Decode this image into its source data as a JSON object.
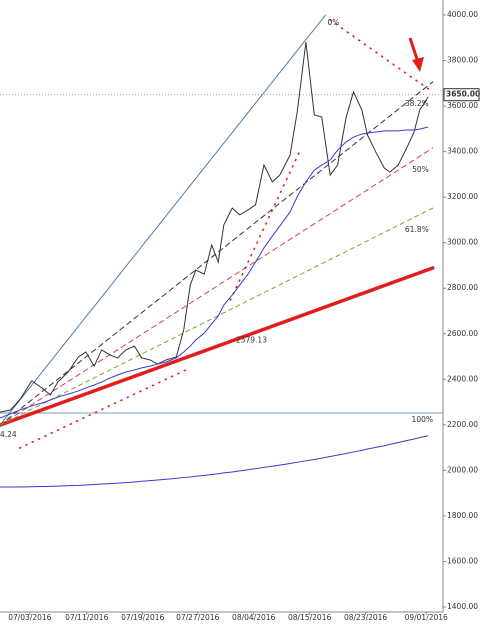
{
  "chart_data": {
    "type": "line",
    "x": [
      0,
      1.1,
      2.1,
      3.4,
      4.5,
      5.4,
      6.2,
      7.3,
      8.4,
      9.2,
      10.1,
      10.9,
      11.8,
      12.6,
      13.5,
      14.4,
      15.2,
      16.1,
      16.9,
      17.8,
      18.9,
      19.7,
      20.4,
      21,
      21.9,
      22.7,
      23.4,
      24,
      24.9,
      25.7,
      26.6,
      27.4,
      28.3,
      29.2,
      30,
      31.1,
      31.9,
      32.8,
      33.7,
      34.5,
      35.4,
      36.2,
      37.1,
      37.9,
      38.8,
      39.4,
      40.3,
      41.2,
      41.8,
      42.7,
      43.5,
      44.4,
      45,
      45.9
    ],
    "series": [
      {
        "color": "#333333",
        "width": 1,
        "values": [
          2256,
          2265,
          2309,
          2393,
          2362,
          2331,
          2388,
          2432,
          2498,
          2520,
          2458,
          2529,
          2507,
          2494,
          2529,
          2546,
          2494,
          2485,
          2467,
          2485,
          2498,
          2617,
          2814,
          2880,
          2862,
          2990,
          2915,
          3078,
          3152,
          3122,
          3144,
          3166,
          3341,
          3267,
          3297,
          3385,
          3583,
          3881,
          3561,
          3552,
          3297,
          3341,
          3548,
          3662,
          3583,
          3473,
          3398,
          3328,
          3310,
          3341,
          3407,
          3486,
          3583,
          3640
        ]
      },
      {
        "color": "#3a3ad0",
        "width": 1,
        "values": [
          2230,
          2248,
          2265,
          2283,
          2296,
          2309,
          2322,
          2335,
          2349,
          2362,
          2375,
          2388,
          2406,
          2419,
          2432,
          2441,
          2450,
          2458,
          2467,
          2476,
          2494,
          2520,
          2546,
          2573,
          2603,
          2643,
          2678,
          2726,
          2770,
          2814,
          2862,
          2915,
          2977,
          3029,
          3073,
          3135,
          3205,
          3267,
          3319,
          3341,
          3363,
          3407,
          3442,
          3464,
          3477,
          3482,
          3486,
          3491,
          3491,
          3491,
          3495,
          3495,
          3499,
          3508
        ]
      },
      {
        "color": "#3a3ad0",
        "width": 1,
        "values": [
          1927,
          1927,
          1927,
          1928,
          1929,
          1930,
          1931,
          1933,
          1934,
          1936,
          1938,
          1940,
          1942,
          1944,
          1946,
          1949,
          1952,
          1955,
          1958,
          1961,
          1965,
          1969,
          1971,
          1974,
          1978,
          1982,
          1985,
          1989,
          1993,
          1998,
          2003,
          2008,
          2013,
          2018,
          2023,
          2030,
          2036,
          2042,
          2048,
          2054,
          2061,
          2067,
          2074,
          2081,
          2088,
          2094,
          2101,
          2108,
          2114,
          2122,
          2130,
          2138,
          2144,
          2152
        ]
      }
    ],
    "lines": [
      {
        "x": [
          0,
          34.9
        ],
        "y": [
          2199,
          4000
        ],
        "color": "#4a7fb0",
        "width": 1,
        "dash": "none",
        "label": "0%",
        "label_color": "#555"
      },
      {
        "x": [
          0,
          46.4
        ],
        "y": [
          2199,
          2889
        ],
        "color": "#e41c1c",
        "width": 3.5,
        "dash": "none"
      },
      {
        "x": [
          0,
          46.4
        ],
        "y": [
          2199,
          3706
        ],
        "color": "#333333",
        "width": 1,
        "dash": "5,4",
        "label": "38.2%",
        "label_color": "#555"
      },
      {
        "x": [
          0,
          46.4
        ],
        "y": [
          2199,
          3416
        ],
        "color": "#d04060",
        "width": 1,
        "dash": "5,4",
        "label": "50%",
        "label_color": "#d04060"
      },
      {
        "x": [
          0,
          46.4
        ],
        "y": [
          2199,
          3152
        ],
        "color": "#66b030",
        "width": 1,
        "dash": "4,4",
        "label": "61.8%",
        "label_color": "#55a030"
      },
      {
        "x": [
          35.4,
          46.4
        ],
        "y": [
          3978,
          3662
        ],
        "color": "#e41c1c",
        "width": 1.6,
        "dash": "1,6"
      },
      {
        "x": [
          2.1,
          20.4
        ],
        "y": [
          2098,
          2450
        ],
        "color": "#e41c1c",
        "width": 1.6,
        "dash": "1,6"
      },
      {
        "x": [
          24.7,
          32.2
        ],
        "y": [
          2748,
          3407
        ],
        "color": "#e41c1c",
        "width": 1.6,
        "dash": "1,6"
      }
    ],
    "hlines": [
      {
        "value": 2252,
        "color": "#4a7fb0",
        "label": "100%"
      },
      {
        "value": 3650,
        "color": "#999999",
        "label": "3650.00"
      }
    ],
    "annotations": [
      {
        "text": "2579.13",
        "x": 25.3,
        "y": 2570
      },
      {
        "text": "4.24",
        "x": 0,
        "y": 2155
      }
    ],
    "xlim": [
      0,
      47.5
    ],
    "xticks": [
      {
        "value": 3.2,
        "label": "07/03/2016"
      },
      {
        "value": 9.3,
        "label": "07/11/2016"
      },
      {
        "value": 15.3,
        "label": "07/19/2016"
      },
      {
        "value": 21.2,
        "label": "07/27/2016"
      },
      {
        "value": 27.2,
        "label": "08/04/2016"
      },
      {
        "value": 33.2,
        "label": "08/15/2016"
      },
      {
        "value": 39.2,
        "label": "08/23/2016"
      },
      {
        "value": 45.7,
        "label": "09/01/2016"
      }
    ],
    "ylim": [
      1378,
      4022
    ],
    "yticks": [
      {
        "value": 1400,
        "label": "1400.00"
      },
      {
        "value": 1600,
        "label": "1600.00"
      },
      {
        "value": 1800,
        "label": "1800.00"
      },
      {
        "value": 2000,
        "label": "2000.00"
      },
      {
        "value": 2200,
        "label": "2200.00"
      },
      {
        "value": 2400,
        "label": "2400.00"
      },
      {
        "value": 2600,
        "label": "2600.00"
      },
      {
        "value": 2800,
        "label": "2800.00"
      },
      {
        "value": 3000,
        "label": "3000.00"
      },
      {
        "value": 3200,
        "label": "3200.00"
      },
      {
        "value": 3400,
        "label": "3400.00"
      },
      {
        "value": 3600,
        "label": "3600.00"
      },
      {
        "value": 3800,
        "label": "3800.00"
      },
      {
        "value": 4000,
        "label": "4000.00"
      }
    ]
  }
}
